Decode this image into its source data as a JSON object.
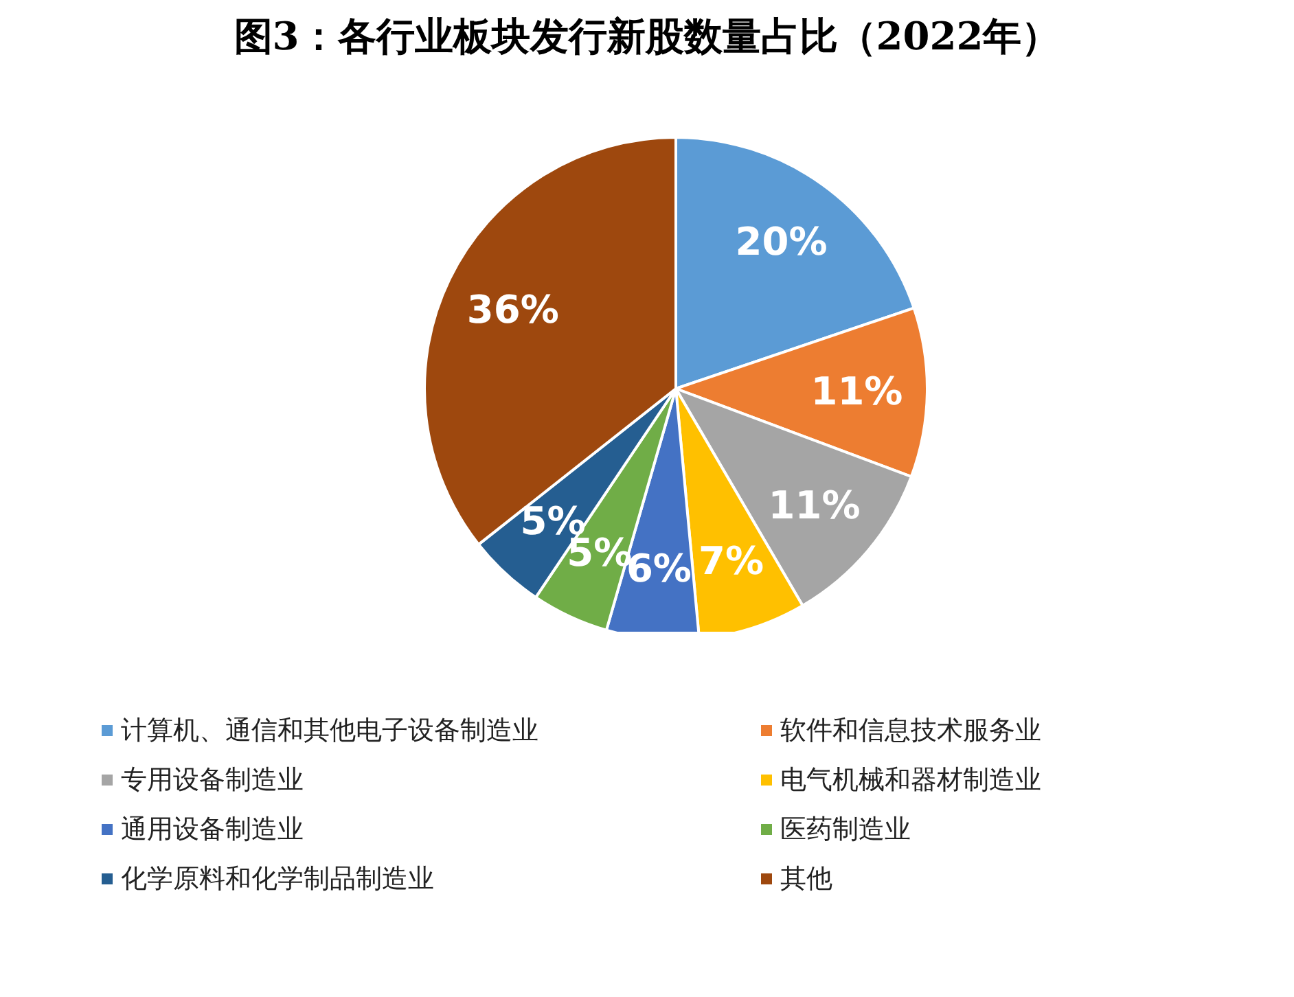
{
  "chart_data": {
    "type": "pie",
    "title": "图3：各行业板块发行新股数量占比（2022年）",
    "categories": [
      "计算机、通信和其他电子设备制造业",
      "软件和信息技术服务业",
      "专用设备制造业",
      "电气机械和器材制造业",
      "通用设备制造业",
      "医药制造业",
      "化学原料和化学制品制造业",
      "其他"
    ],
    "values": [
      20,
      11,
      11,
      7,
      6,
      5,
      5,
      36
    ],
    "colors": [
      "#5b9bd5",
      "#ed7d31",
      "#a5a5a5",
      "#ffc000",
      "#4472c4",
      "#70ad47",
      "#255e91",
      "#9e480e"
    ],
    "value_labels": [
      "20%",
      "11%",
      "11%",
      "7%",
      "6%",
      "5%",
      "5%",
      "36%"
    ],
    "legend": "bottom"
  }
}
